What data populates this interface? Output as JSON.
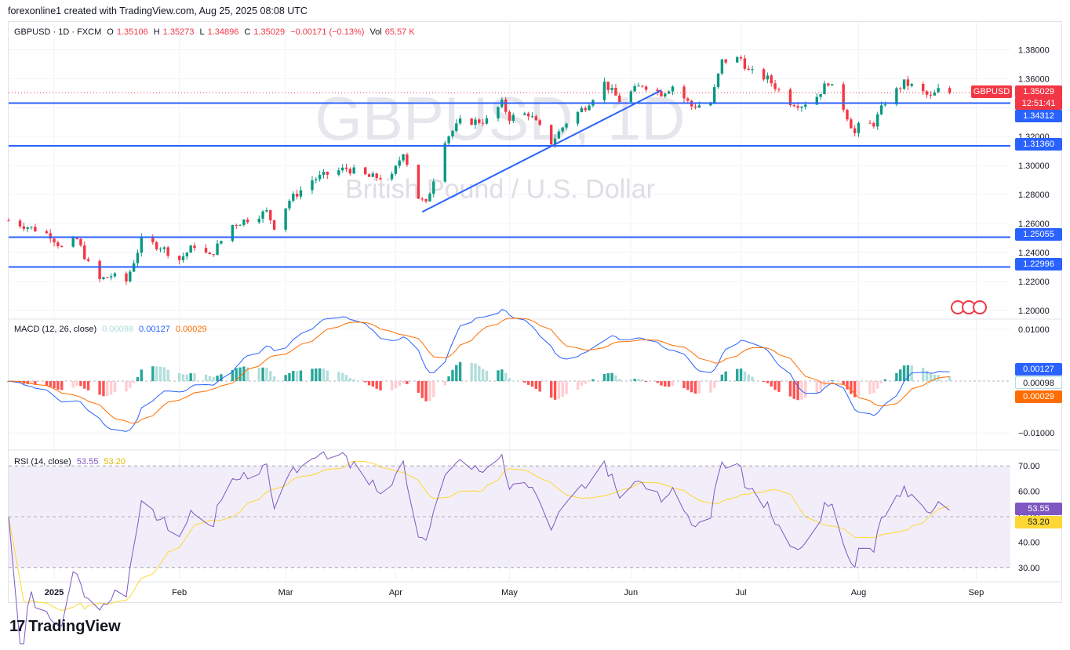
{
  "header": {
    "credit": "forexonline1 created with TradingView.com, Aug 25, 2025 08:08 UTC"
  },
  "footer": {
    "brand": "TradingView",
    "logo_glyph": "17"
  },
  "main_legend": {
    "symbol": "GBPUSD · 1D · FXCM",
    "o_label": "O",
    "o": "1.35106",
    "h_label": "H",
    "h": "1.35273",
    "l_label": "L",
    "l": "1.34896",
    "c_label": "C",
    "c": "1.35029",
    "change": "−0.00171 (−0.13%)",
    "vol_label": "Vol",
    "vol": "65.57 K"
  },
  "watermark": {
    "title": "GBPUSD, 1D",
    "subtitle": "British Pound / U.S. Dollar"
  },
  "price_tags": {
    "symbol": "GBPUSD",
    "last": "1.35029",
    "countdown": "12:51:41",
    "levels": [
      "1.34312",
      "1.31360",
      "1.25055",
      "1.22996"
    ]
  },
  "macd_legend": {
    "title": "MACD (12, 26, close)",
    "hist": "0.00098",
    "macd": "0.00127",
    "signal": "0.00029"
  },
  "rsi_legend": {
    "title": "RSI (14, close)",
    "rsi": "53.55",
    "ma": "53.20"
  },
  "colors": {
    "up": "#089981",
    "down": "#f23645",
    "level_line": "#2962ff",
    "trendline": "#2962ff",
    "macd_line": "#2962ff",
    "signal_line": "#ff6d00",
    "rsi_line": "#7e57c2",
    "rsi_ma": "#fdd835",
    "rsi_band": "#ede7f6",
    "hist_up_strong": "#26a69a",
    "hist_up_weak": "#b2dfdb",
    "hist_dn_strong": "#ff5252",
    "hist_dn_weak": "#ffcdd2"
  },
  "chart_data": [
    {
      "type": "candlestick",
      "title": "GBPUSD · 1D · FXCM",
      "y_ticks": [
        "1.38000",
        "1.36000",
        "1.34000",
        "1.32000",
        "1.30000",
        "1.28000",
        "1.26000",
        "1.24000",
        "1.22000",
        "1.20000"
      ],
      "ylim": [
        1.195,
        1.39
      ],
      "x_labels": [
        "2025",
        "Feb",
        "Mar",
        "Apr",
        "May",
        "Jun",
        "Jul",
        "Aug",
        "Sep"
      ],
      "x_label_dates": [
        "2025-01-01",
        "2025-02-03",
        "2025-03-03",
        "2025-04-01",
        "2025-05-01",
        "2025-06-02",
        "2025-07-01",
        "2025-08-01",
        "2025-09-01"
      ],
      "x_range": [
        "2024-12-20",
        "2025-09-10"
      ],
      "horizontal_levels": [
        1.34312,
        1.3136,
        1.25055,
        1.22996
      ],
      "last_price": 1.35029,
      "trendline": [
        [
          "2025-04-08",
          1.268
        ],
        [
          "2025-06-10",
          1.352
        ]
      ],
      "anchors": [
        [
          "2024-12-20",
          1.262
        ],
        [
          "2024-12-27",
          1.256
        ],
        [
          "2024-12-31",
          1.252
        ],
        [
          "2025-01-03",
          1.243
        ],
        [
          "2025-01-07",
          1.249
        ],
        [
          "2025-01-10",
          1.232
        ],
        [
          "2025-01-13",
          1.221
        ],
        [
          "2025-01-16",
          1.224
        ],
        [
          "2025-01-20",
          1.22
        ],
        [
          "2025-01-24",
          1.248
        ],
        [
          "2025-01-29",
          1.244
        ],
        [
          "2025-02-03",
          1.235
        ],
        [
          "2025-02-07",
          1.245
        ],
        [
          "2025-02-11",
          1.237
        ],
        [
          "2025-02-17",
          1.259
        ],
        [
          "2025-02-21",
          1.263
        ],
        [
          "2025-02-26",
          1.268
        ],
        [
          "2025-02-28",
          1.258
        ],
        [
          "2025-03-04",
          1.276
        ],
        [
          "2025-03-10",
          1.29
        ],
        [
          "2025-03-14",
          1.294
        ],
        [
          "2025-03-19",
          1.298
        ],
        [
          "2025-03-25",
          1.292
        ],
        [
          "2025-03-31",
          1.292
        ],
        [
          "2025-04-03",
          1.31
        ],
        [
          "2025-04-07",
          1.278
        ],
        [
          "2025-04-09",
          1.273
        ],
        [
          "2025-04-14",
          1.318
        ],
        [
          "2025-04-18",
          1.33
        ],
        [
          "2025-04-25",
          1.331
        ],
        [
          "2025-04-29",
          1.343
        ],
        [
          "2025-05-01",
          1.333
        ],
        [
          "2025-05-06",
          1.336
        ],
        [
          "2025-05-12",
          1.316
        ],
        [
          "2025-05-16",
          1.33
        ],
        [
          "2025-05-21",
          1.341
        ],
        [
          "2025-05-26",
          1.357
        ],
        [
          "2025-05-30",
          1.345
        ],
        [
          "2025-06-05",
          1.356
        ],
        [
          "2025-06-10",
          1.35
        ],
        [
          "2025-06-13",
          1.355
        ],
        [
          "2025-06-18",
          1.341
        ],
        [
          "2025-06-23",
          1.343
        ],
        [
          "2025-06-26",
          1.372
        ],
        [
          "2025-07-01",
          1.374
        ],
        [
          "2025-07-03",
          1.365
        ],
        [
          "2025-07-08",
          1.36
        ],
        [
          "2025-07-14",
          1.344
        ],
        [
          "2025-07-17",
          1.342
        ],
        [
          "2025-07-21",
          1.348
        ],
        [
          "2025-07-24",
          1.358
        ],
        [
          "2025-07-28",
          1.34
        ],
        [
          "2025-07-31",
          1.322
        ],
        [
          "2025-08-01",
          1.327
        ],
        [
          "2025-08-05",
          1.329
        ],
        [
          "2025-08-08",
          1.344
        ],
        [
          "2025-08-13",
          1.357
        ],
        [
          "2025-08-15",
          1.355
        ],
        [
          "2025-08-20",
          1.347
        ],
        [
          "2025-08-22",
          1.352
        ],
        [
          "2025-08-25",
          1.35029
        ]
      ]
    },
    {
      "type": "line",
      "title": "MACD (12, 26, close)",
      "y_ticks": [
        "0.01000",
        "-0.01000"
      ],
      "ylim": [
        -0.013,
        0.0115
      ],
      "series": [
        {
          "name": "MACD",
          "last": 0.00127
        },
        {
          "name": "Signal",
          "last": 0.00029
        },
        {
          "name": "Histogram",
          "last": 0.00098
        }
      ]
    },
    {
      "type": "line",
      "title": "RSI (14, close)",
      "y_ticks": [
        "70.00",
        "60.00",
        "50.00",
        "40.00",
        "30.00"
      ],
      "ylim": [
        25,
        75
      ],
      "band": [
        30,
        70
      ],
      "series": [
        {
          "name": "RSI",
          "last": 53.55
        },
        {
          "name": "RSI-based MA",
          "last": 53.2
        }
      ]
    }
  ]
}
